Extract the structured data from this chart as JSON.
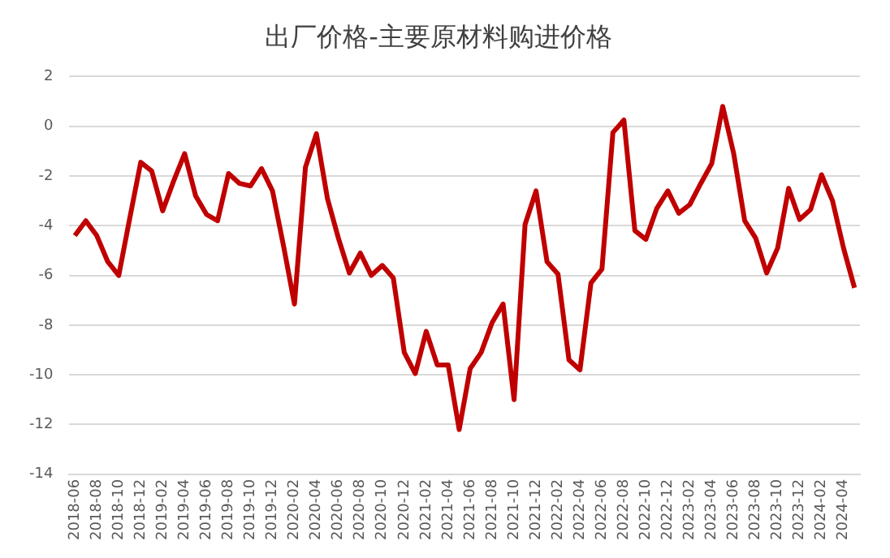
{
  "chart_data": {
    "type": "line",
    "title": "出厂价格-主要原材料购进价格",
    "categories": [
      "2018-06",
      null,
      "2018-08",
      null,
      "2018-10",
      null,
      "2018-12",
      null,
      "2019-02",
      null,
      "2019-04",
      null,
      "2019-06",
      null,
      "2019-08",
      null,
      "2019-10",
      null,
      "2019-12",
      null,
      "2020-02",
      null,
      "2020-04",
      null,
      "2020-06",
      null,
      "2020-08",
      null,
      "2020-10",
      null,
      "2020-12",
      null,
      "2021-02",
      null,
      "2021-04",
      null,
      "2021-06",
      null,
      "2021-08",
      null,
      "2021-10",
      null,
      "2021-12",
      null,
      "2022-02",
      null,
      "2022-04",
      null,
      "2022-06",
      null,
      "2022-08",
      null,
      "2022-10",
      null,
      "2022-12",
      null,
      "2023-02",
      null,
      "2023-04",
      null,
      "2023-06",
      null,
      "2023-08",
      null,
      "2023-10",
      null,
      "2023-12",
      null,
      "2024-02",
      null,
      "2024-04",
      null
    ],
    "series": [
      {
        "color": "#c00000",
        "values": [
          -4.4,
          -3.8,
          -4.4,
          -5.45,
          -6.0,
          -3.7,
          -1.45,
          -1.8,
          -3.4,
          -2.2,
          -1.1,
          -2.8,
          -3.55,
          -3.8,
          -1.9,
          -2.3,
          -2.4,
          -1.7,
          -2.6,
          -4.8,
          -7.15,
          -1.65,
          -0.3,
          -2.9,
          -4.5,
          -5.9,
          -5.1,
          -6.0,
          -5.6,
          -6.1,
          -9.1,
          -9.95,
          -8.25,
          -9.6,
          -9.6,
          -12.2,
          -9.75,
          -9.1,
          -7.9,
          -7.15,
          -11.0,
          -3.95,
          -2.6,
          -5.45,
          -5.95,
          -9.4,
          -9.8,
          -6.3,
          -5.75,
          -0.25,
          0.25,
          -4.2,
          -4.55,
          -3.3,
          -2.6,
          -3.5,
          -3.15,
          -2.3,
          -1.5,
          0.8,
          -1.1,
          -3.8,
          -4.5,
          -5.9,
          -4.9,
          -2.5,
          -3.75,
          -3.35,
          -1.95,
          -3.0,
          -4.9,
          -6.5
        ]
      }
    ],
    "ylim": [
      -14,
      2
    ],
    "yticks": [
      -14,
      -12,
      -10,
      -8,
      -6,
      -4,
      -2,
      0,
      2
    ],
    "grid": "y",
    "legend": false,
    "marker": "none",
    "line_style": "solid"
  }
}
